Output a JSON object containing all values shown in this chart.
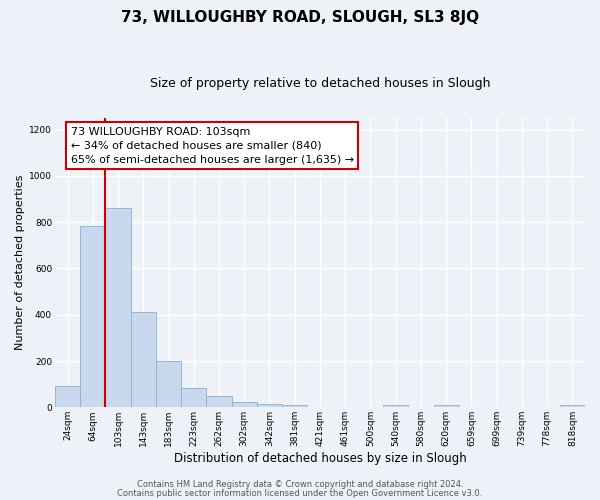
{
  "title": "73, WILLOUGHBY ROAD, SLOUGH, SL3 8JQ",
  "subtitle": "Size of property relative to detached houses in Slough",
  "xlabel": "Distribution of detached houses by size in Slough",
  "ylabel": "Number of detached properties",
  "bar_labels": [
    "24sqm",
    "64sqm",
    "103sqm",
    "143sqm",
    "183sqm",
    "223sqm",
    "262sqm",
    "302sqm",
    "342sqm",
    "381sqm",
    "421sqm",
    "461sqm",
    "500sqm",
    "540sqm",
    "580sqm",
    "620sqm",
    "659sqm",
    "699sqm",
    "739sqm",
    "778sqm",
    "818sqm"
  ],
  "bar_values": [
    92,
    785,
    862,
    410,
    200,
    85,
    50,
    22,
    15,
    8,
    0,
    0,
    0,
    12,
    0,
    8,
    0,
    0,
    0,
    0,
    12
  ],
  "bar_color": "#c8d9ee",
  "bar_edge_color": "#8ab0d4",
  "vline_index": 2,
  "vline_color": "#cc0000",
  "annotation_line1": "73 WILLOUGHBY ROAD: 103sqm",
  "annotation_line2": "← 34% of detached houses are smaller (840)",
  "annotation_line3": "65% of semi-detached houses are larger (1,635) →",
  "annotation_box_color": "#ffffff",
  "annotation_box_edge": "#cc0000",
  "ylim": [
    0,
    1250
  ],
  "yticks": [
    0,
    200,
    400,
    600,
    800,
    1000,
    1200
  ],
  "footer_line1": "Contains HM Land Registry data © Crown copyright and database right 2024.",
  "footer_line2": "Contains public sector information licensed under the Open Government Licence v3.0.",
  "bg_color": "#eef2f8",
  "plot_bg_color": "#eef2f8",
  "grid_color": "#ffffff",
  "title_fontsize": 11,
  "subtitle_fontsize": 9,
  "xlabel_fontsize": 8.5,
  "ylabel_fontsize": 8,
  "tick_fontsize": 6.5,
  "annotation_fontsize": 8,
  "footer_fontsize": 6
}
